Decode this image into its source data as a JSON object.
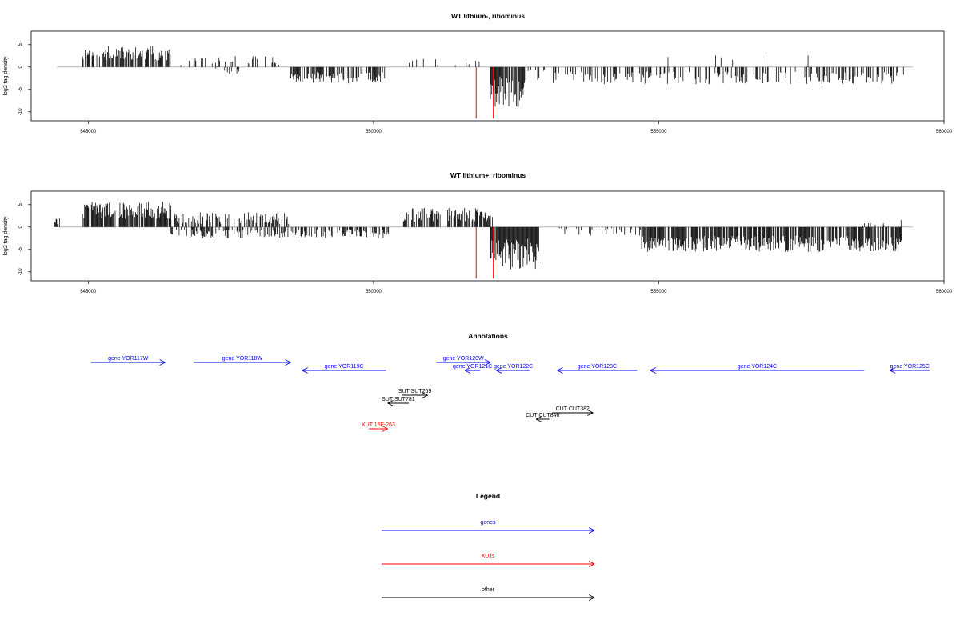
{
  "chart_data": [
    {
      "type": "bar",
      "title": "WT lithium-, ribominus",
      "xlabel": "",
      "ylabel": "log2 tag density",
      "xlim": [
        544000,
        560000
      ],
      "ylim": [
        -12,
        8
      ],
      "xticks": [
        545000,
        550000,
        555000,
        560000
      ],
      "yticks": [
        -10,
        -5,
        0,
        5
      ],
      "segments": [
        {
          "x": [
            544900,
            546450
          ],
          "sign": 1,
          "base": 2.6,
          "amp": 1.6,
          "density": 0.65,
          "seed": 11
        },
        {
          "x": [
            546600,
            548350
          ],
          "sign": 1,
          "base": 1.0,
          "amp": 1.1,
          "density": 0.22,
          "seed": 12
        },
        {
          "x": [
            547200,
            547700
          ],
          "sign": -1,
          "base": 0.6,
          "amp": 0.7,
          "density": 0.18,
          "seed": 13
        },
        {
          "x": [
            548550,
            550200
          ],
          "sign": -1,
          "base": 2.0,
          "amp": 1.3,
          "density": 0.55,
          "seed": 14
        },
        {
          "x": [
            550600,
            551950
          ],
          "sign": 1,
          "base": 1.2,
          "amp": 1.2,
          "density": 0.14,
          "seed": 15
        },
        {
          "x": [
            552050,
            552650
          ],
          "sign": -1,
          "base": 4.5,
          "amp": 3.5,
          "density": 0.9,
          "seed": 16
        },
        {
          "x": [
            552650,
            553000
          ],
          "sign": -1,
          "base": 1.5,
          "amp": 1.6,
          "density": 0.3,
          "seed": 17
        },
        {
          "x": [
            553150,
            559300
          ],
          "sign": -1,
          "base": 2.0,
          "amp": 1.4,
          "density": 0.35,
          "seed": 18
        },
        {
          "x": [
            555150,
            558350
          ],
          "sign": 1,
          "base": 0.8,
          "amp": 1.5,
          "density": 0.015,
          "seed": 19
        }
      ],
      "markers": [
        {
          "x": 551800,
          "y": -11.5,
          "color": "#ff0000"
        },
        {
          "x": 552100,
          "y": -11.5,
          "color": "#ff0000"
        }
      ]
    },
    {
      "type": "bar",
      "title": "WT lithium+, ribominus",
      "xlabel": "",
      "ylabel": "log2 tag density",
      "xlim": [
        544000,
        560000
      ],
      "ylim": [
        -12,
        8
      ],
      "xticks": [
        545000,
        550000,
        555000,
        560000
      ],
      "yticks": [
        -10,
        -5,
        0,
        5
      ],
      "segments": [
        {
          "x": [
            544400,
            544500
          ],
          "sign": 1,
          "base": 1.0,
          "amp": 0.8,
          "density": 0.5,
          "seed": 21
        },
        {
          "x": [
            544900,
            546450
          ],
          "sign": 1,
          "base": 3.2,
          "amp": 1.9,
          "density": 0.8,
          "seed": 22
        },
        {
          "x": [
            546450,
            548550
          ],
          "sign": 1,
          "base": 1.6,
          "amp": 1.3,
          "density": 0.45,
          "seed": 23
        },
        {
          "x": [
            546450,
            550300
          ],
          "sign": -1,
          "base": 1.2,
          "amp": 1.0,
          "density": 0.45,
          "seed": 24
        },
        {
          "x": [
            550500,
            552100
          ],
          "sign": 1,
          "base": 2.2,
          "amp": 1.6,
          "density": 0.65,
          "seed": 25
        },
        {
          "x": [
            552050,
            552900
          ],
          "sign": -1,
          "base": 5.0,
          "amp": 3.5,
          "density": 0.92,
          "seed": 26
        },
        {
          "x": [
            553150,
            554700
          ],
          "sign": -1,
          "base": 0.8,
          "amp": 1.0,
          "density": 0.2,
          "seed": 27
        },
        {
          "x": [
            554700,
            559300
          ],
          "sign": -1,
          "base": 3.2,
          "amp": 1.8,
          "density": 0.75,
          "seed": 28
        },
        {
          "x": [
            558400,
            559350
          ],
          "sign": 1,
          "base": 0.8,
          "amp": 1.2,
          "density": 0.12,
          "seed": 29
        }
      ],
      "markers": [
        {
          "x": 551800,
          "y": -11.5,
          "color": "#ff0000"
        },
        {
          "x": 552100,
          "y": -11.5,
          "color": "#ff0000"
        }
      ]
    }
  ],
  "annotations": {
    "title": "Annotations",
    "colors": {
      "gene": "#0000ff",
      "xut": "#ff0000",
      "other": "#000000"
    },
    "items": [
      {
        "label": "gene YOR117W",
        "kind": "gene",
        "start": 545050,
        "end": 546350,
        "dir": 1,
        "row": 0
      },
      {
        "label": "gene YOR118W",
        "kind": "gene",
        "start": 546850,
        "end": 548550,
        "dir": 1,
        "row": 0
      },
      {
        "label": "gene YOR119C",
        "kind": "gene",
        "start": 548750,
        "end": 550220,
        "dir": -1,
        "row": 1
      },
      {
        "label": "gene YOR120W",
        "kind": "gene",
        "start": 551100,
        "end": 552050,
        "dir": 1,
        "row": 0
      },
      {
        "label": "gene YOR121C",
        "kind": "gene",
        "start": 551600,
        "end": 551870,
        "dir": -1,
        "row": 1
      },
      {
        "label": "gene YOR122C",
        "kind": "gene",
        "start": 552150,
        "end": 552750,
        "dir": -1,
        "row": 1
      },
      {
        "label": "gene YOR123C",
        "kind": "gene",
        "start": 553220,
        "end": 554620,
        "dir": -1,
        "row": 1
      },
      {
        "label": "gene YOR124C",
        "kind": "gene",
        "start": 554850,
        "end": 558600,
        "dir": -1,
        "row": 1
      },
      {
        "label": "gene YOR125C",
        "kind": "gene",
        "start": 559050,
        "end": 559750,
        "dir": -1,
        "row": 1
      },
      {
        "label": "SUT SUT269",
        "kind": "other",
        "start": 550500,
        "end": 550950,
        "dir": 1,
        "row": 2
      },
      {
        "label": "SUT SUT781",
        "kind": "other",
        "start": 550250,
        "end": 550620,
        "dir": -1,
        "row": 3
      },
      {
        "label": "CUT CUT382",
        "kind": "other",
        "start": 553130,
        "end": 553850,
        "dir": 1,
        "row": 4
      },
      {
        "label": "CUT CUT846",
        "kind": "other",
        "start": 552850,
        "end": 553080,
        "dir": -1,
        "row": 5
      },
      {
        "label": "XUT 15F-263",
        "kind": "xut",
        "start": 549920,
        "end": 550250,
        "dir": 1,
        "row": 6
      }
    ]
  },
  "legend": {
    "title": "Legend",
    "items": [
      {
        "label": "genes",
        "color": "#0000ff"
      },
      {
        "label": "XUTs",
        "color": "#ff0000"
      },
      {
        "label": "other",
        "color": "#000000"
      }
    ]
  }
}
